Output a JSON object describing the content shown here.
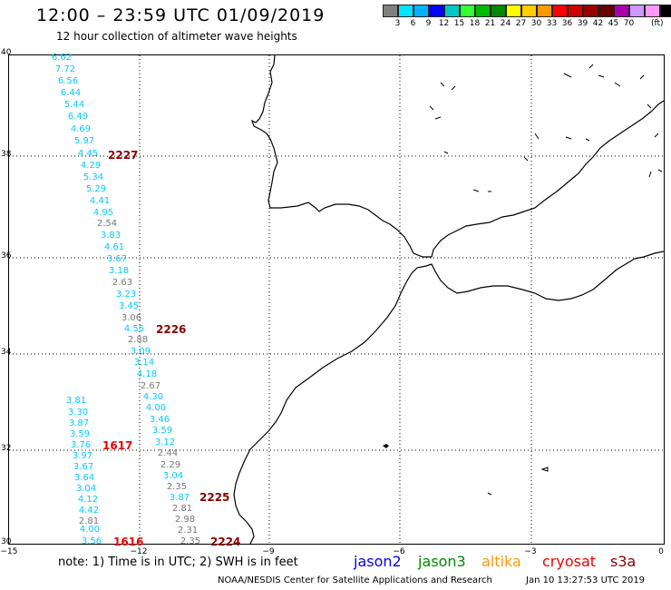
{
  "header": {
    "title": "12:00 – 23:59 UTC 01/09/2019",
    "subtitle": "12 hour collection of altimeter wave heights"
  },
  "colorscale": {
    "colors": [
      "#7f7f7f",
      "#00e5ff",
      "#00b2ff",
      "#0000ff",
      "#00c8c8",
      "#33ff33",
      "#00bb00",
      "#008800",
      "#ffff00",
      "#ffcc00",
      "#ff9900",
      "#ff0000",
      "#cc0000",
      "#990000",
      "#660000",
      "#aa00aa",
      "#cc99ff",
      "#ff99ff",
      "#000000"
    ],
    "labels": [
      "3",
      "6",
      "9",
      "12",
      "15",
      "18",
      "21",
      "24",
      "27",
      "30",
      "33",
      "36",
      "39",
      "42",
      "45",
      "70"
    ],
    "unit": "(ft)"
  },
  "axes": {
    "lat_labels": [
      "40",
      "38",
      "36",
      "34",
      "32",
      "30"
    ],
    "lon_labels": [
      "−15",
      "−12",
      "−9",
      "−6",
      "−3",
      "0"
    ]
  },
  "readings": [
    {
      "v": "6.62",
      "c": "#00ccff"
    },
    {
      "v": "7.72",
      "c": "#00ccff"
    },
    {
      "v": "6.56",
      "c": "#00ccff"
    },
    {
      "v": "6.44",
      "c": "#00ccff"
    },
    {
      "v": "5.44",
      "c": "#00ccff"
    },
    {
      "v": "6.49",
      "c": "#00ccff"
    },
    {
      "v": "4.69",
      "c": "#00ccff"
    },
    {
      "v": "5.97",
      "c": "#00ccff"
    },
    {
      "v": "4.45",
      "c": "#00ccff"
    },
    {
      "v": "4.29",
      "c": "#00ccff"
    },
    {
      "v": "5.34",
      "c": "#00ccff"
    },
    {
      "v": "5.29",
      "c": "#00ccff"
    },
    {
      "v": "4.41",
      "c": "#00ccff"
    },
    {
      "v": "4.95",
      "c": "#00ccff"
    },
    {
      "v": "2.54",
      "c": "#777777"
    },
    {
      "v": "3.83",
      "c": "#00ccff"
    },
    {
      "v": "4.61",
      "c": "#00ccff"
    },
    {
      "v": "3.67",
      "c": "#00ccff"
    },
    {
      "v": "3.18",
      "c": "#00ccff"
    },
    {
      "v": "2.63",
      "c": "#777777"
    },
    {
      "v": "3.23",
      "c": "#00ccff"
    },
    {
      "v": "3.45",
      "c": "#00ccff"
    },
    {
      "v": "3.06",
      "c": "#777777"
    },
    {
      "v": "4.55",
      "c": "#00ccff"
    },
    {
      "v": "2.88",
      "c": "#777777"
    },
    {
      "v": "3.09",
      "c": "#00ccff"
    },
    {
      "v": "3.14",
      "c": "#00ccff"
    },
    {
      "v": "4.18",
      "c": "#00ccff"
    },
    {
      "v": "2.67",
      "c": "#777777"
    },
    {
      "v": "4.30",
      "c": "#00ccff"
    },
    {
      "v": "4.00",
      "c": "#00ccff"
    },
    {
      "v": "3.46",
      "c": "#00ccff"
    },
    {
      "v": "3.59",
      "c": "#00ccff"
    },
    {
      "v": "3.12",
      "c": "#00ccff"
    },
    {
      "v": "2.44",
      "c": "#777777"
    },
    {
      "v": "2.29",
      "c": "#777777"
    },
    {
      "v": "3.04",
      "c": "#00ccff"
    },
    {
      "v": "2.35",
      "c": "#777777"
    },
    {
      "v": "3.87",
      "c": "#00ccff"
    },
    {
      "v": "2.81",
      "c": "#777777"
    },
    {
      "v": "2.98",
      "c": "#777777"
    },
    {
      "v": "2.31",
      "c": "#777777"
    },
    {
      "v": "2.35",
      "c": "#777777"
    },
    {
      "v": "3.81",
      "c": "#00ccff"
    },
    {
      "v": "3.30",
      "c": "#00ccff"
    },
    {
      "v": "3.87",
      "c": "#00ccff"
    },
    {
      "v": "3.59",
      "c": "#00ccff"
    },
    {
      "v": "3.76",
      "c": "#00ccff"
    },
    {
      "v": "3.97",
      "c": "#00ccff"
    },
    {
      "v": "3.67",
      "c": "#00ccff"
    },
    {
      "v": "3.64",
      "c": "#00ccff"
    },
    {
      "v": "3.04",
      "c": "#00ccff"
    },
    {
      "v": "4.12",
      "c": "#00ccff"
    },
    {
      "v": "4.42",
      "c": "#00ccff"
    },
    {
      "v": "2.81",
      "c": "#777777"
    },
    {
      "v": "4.00",
      "c": "#00ccff"
    },
    {
      "v": "3.56",
      "c": "#00ccff"
    }
  ],
  "tracks": [
    {
      "label": "2227",
      "color": "#880000"
    },
    {
      "label": "2226",
      "color": "#880000"
    },
    {
      "label": "1617",
      "color": "#ee0000"
    },
    {
      "label": "2225",
      "color": "#880000"
    },
    {
      "label": "1616",
      "color": "#ee0000"
    },
    {
      "label": "2224",
      "color": "#880000"
    }
  ],
  "note": "note: 1) Time is in UTC; 2) SWH is in feet",
  "satellites": [
    {
      "name": "jason2",
      "color": "#0000ee"
    },
    {
      "name": "jason3",
      "color": "#008800"
    },
    {
      "name": "altika",
      "color": "#ff9900"
    },
    {
      "name": "cryosat",
      "color": "#ee0000"
    },
    {
      "name": "s3a",
      "color": "#880000"
    }
  ],
  "footer": {
    "source": "NOAA/NESDIS Center for Satellite Applications and Research",
    "timestamp": "Jan 10 13:27:53 UTC 2019"
  }
}
